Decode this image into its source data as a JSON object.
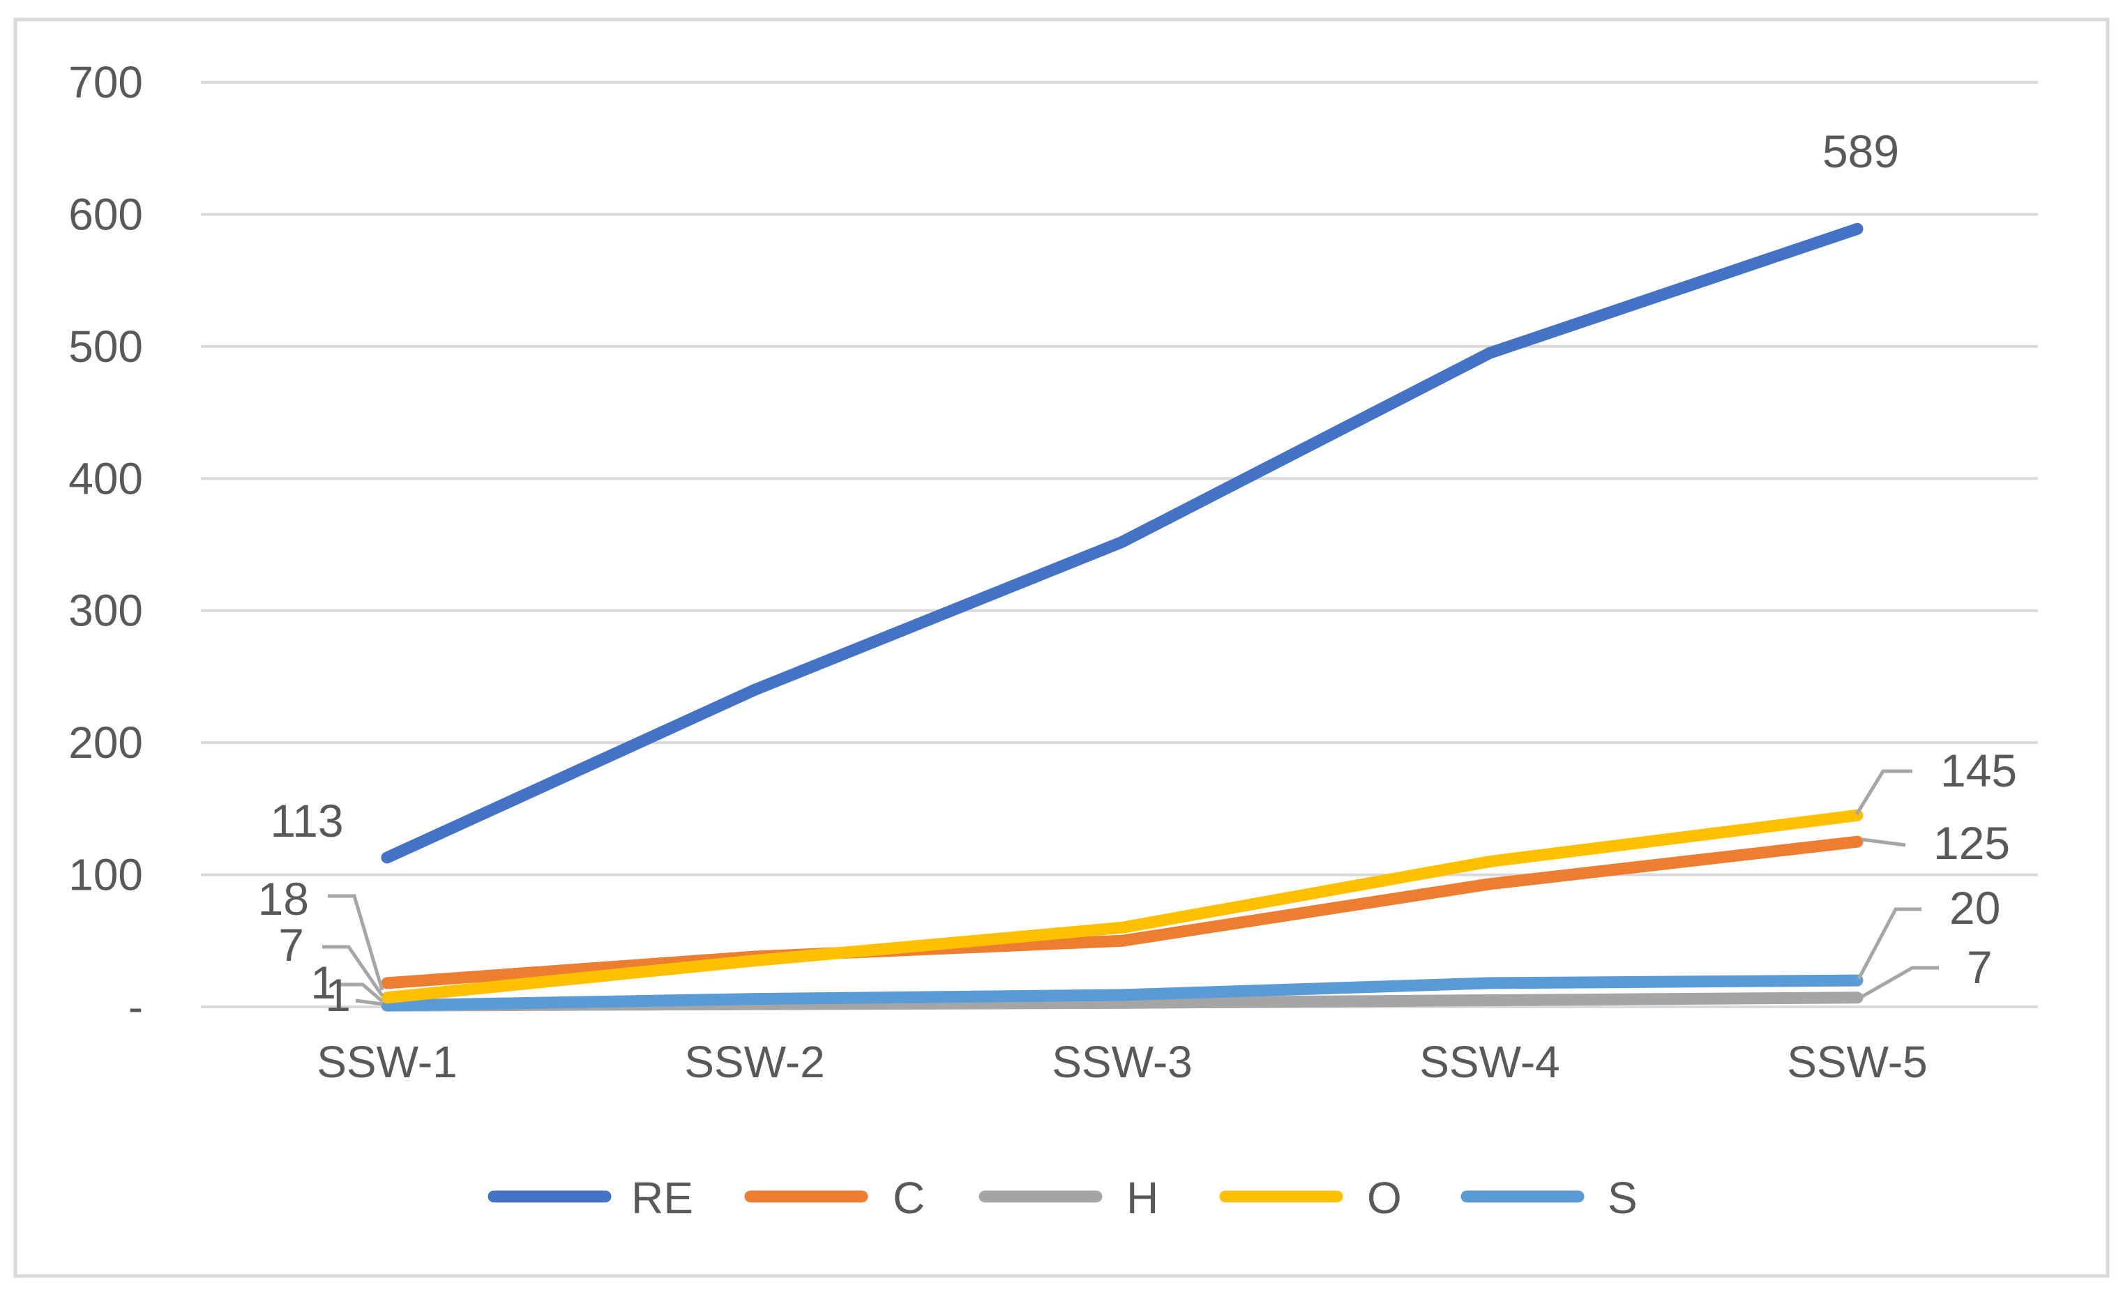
{
  "chart_data": {
    "type": "line",
    "title": "",
    "xlabel": "",
    "ylabel": "",
    "categories": [
      "SSW-1",
      "SSW-2",
      "SSW-3",
      "SSW-4",
      "SSW-5"
    ],
    "ylim": [
      0,
      700
    ],
    "yticks": [
      {
        "value": 0,
        "label": "-"
      },
      {
        "value": 100,
        "label": "100"
      },
      {
        "value": 200,
        "label": "200"
      },
      {
        "value": 300,
        "label": "300"
      },
      {
        "value": 400,
        "label": "400"
      },
      {
        "value": 500,
        "label": "500"
      },
      {
        "value": 600,
        "label": "600"
      },
      {
        "value": 700,
        "label": "700"
      }
    ],
    "grid": true,
    "legend_position": "bottom",
    "series": [
      {
        "name": "RE",
        "color": "#4472C4",
        "values": [
          113,
          240,
          352,
          495,
          589
        ],
        "labels": {
          "first": "113",
          "last": "589"
        }
      },
      {
        "name": "C",
        "color": "#ED7D31",
        "values": [
          18,
          38,
          50,
          93,
          125
        ],
        "labels": {
          "first": "18",
          "last": "125"
        }
      },
      {
        "name": "H",
        "color": "#A5A5A5",
        "values": [
          1,
          2,
          3,
          5,
          7
        ],
        "labels": {
          "first": "1",
          "last": "7"
        }
      },
      {
        "name": "O",
        "color": "#FFC000",
        "values": [
          7,
          35,
          60,
          110,
          145
        ],
        "labels": {
          "first": "7",
          "last": "145"
        }
      },
      {
        "name": "S",
        "color": "#5B9BD5",
        "values": [
          1,
          6,
          9,
          18,
          20
        ],
        "labels": {
          "first": "1",
          "last": "20"
        }
      }
    ]
  }
}
